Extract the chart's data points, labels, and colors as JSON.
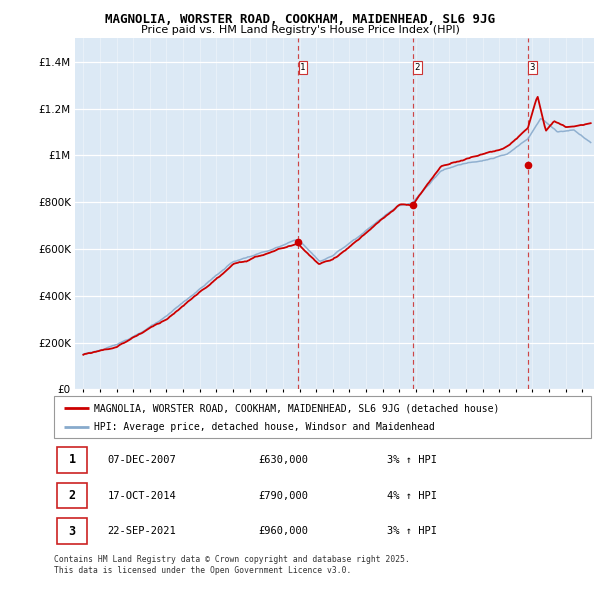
{
  "title": "MAGNOLIA, WORSTER ROAD, COOKHAM, MAIDENHEAD, SL6 9JG",
  "subtitle": "Price paid vs. HM Land Registry's House Price Index (HPI)",
  "legend_line1": "MAGNOLIA, WORSTER ROAD, COOKHAM, MAIDENHEAD, SL6 9JG (detached house)",
  "legend_line2": "HPI: Average price, detached house, Windsor and Maidenhead",
  "footer1": "Contains HM Land Registry data © Crown copyright and database right 2025.",
  "footer2": "This data is licensed under the Open Government Licence v3.0.",
  "transactions": [
    {
      "num": "1",
      "date": "07-DEC-2007",
      "price": "£630,000",
      "pct": "3%",
      "dir": "↑",
      "label": "HPI"
    },
    {
      "num": "2",
      "date": "17-OCT-2014",
      "price": "£790,000",
      "pct": "4%",
      "dir": "↑",
      "label": "HPI"
    },
    {
      "num": "3",
      "date": "22-SEP-2021",
      "price": "£960,000",
      "pct": "3%",
      "dir": "↑",
      "label": "HPI"
    }
  ],
  "sale_dates": [
    2007.92,
    2014.79,
    2021.72
  ],
  "sale_prices": [
    630000,
    790000,
    960000
  ],
  "sale_labels": [
    "1",
    "2",
    "3"
  ],
  "vline_dates": [
    2007.92,
    2014.79,
    2021.72
  ],
  "red_line_color": "#cc0000",
  "blue_line_color": "#88aacc",
  "vline_color": "#cc3333",
  "plot_bg_color": "#dce9f5",
  "ylim": [
    0,
    1500000
  ],
  "xlim_start": 1994.5,
  "xlim_end": 2025.7
}
